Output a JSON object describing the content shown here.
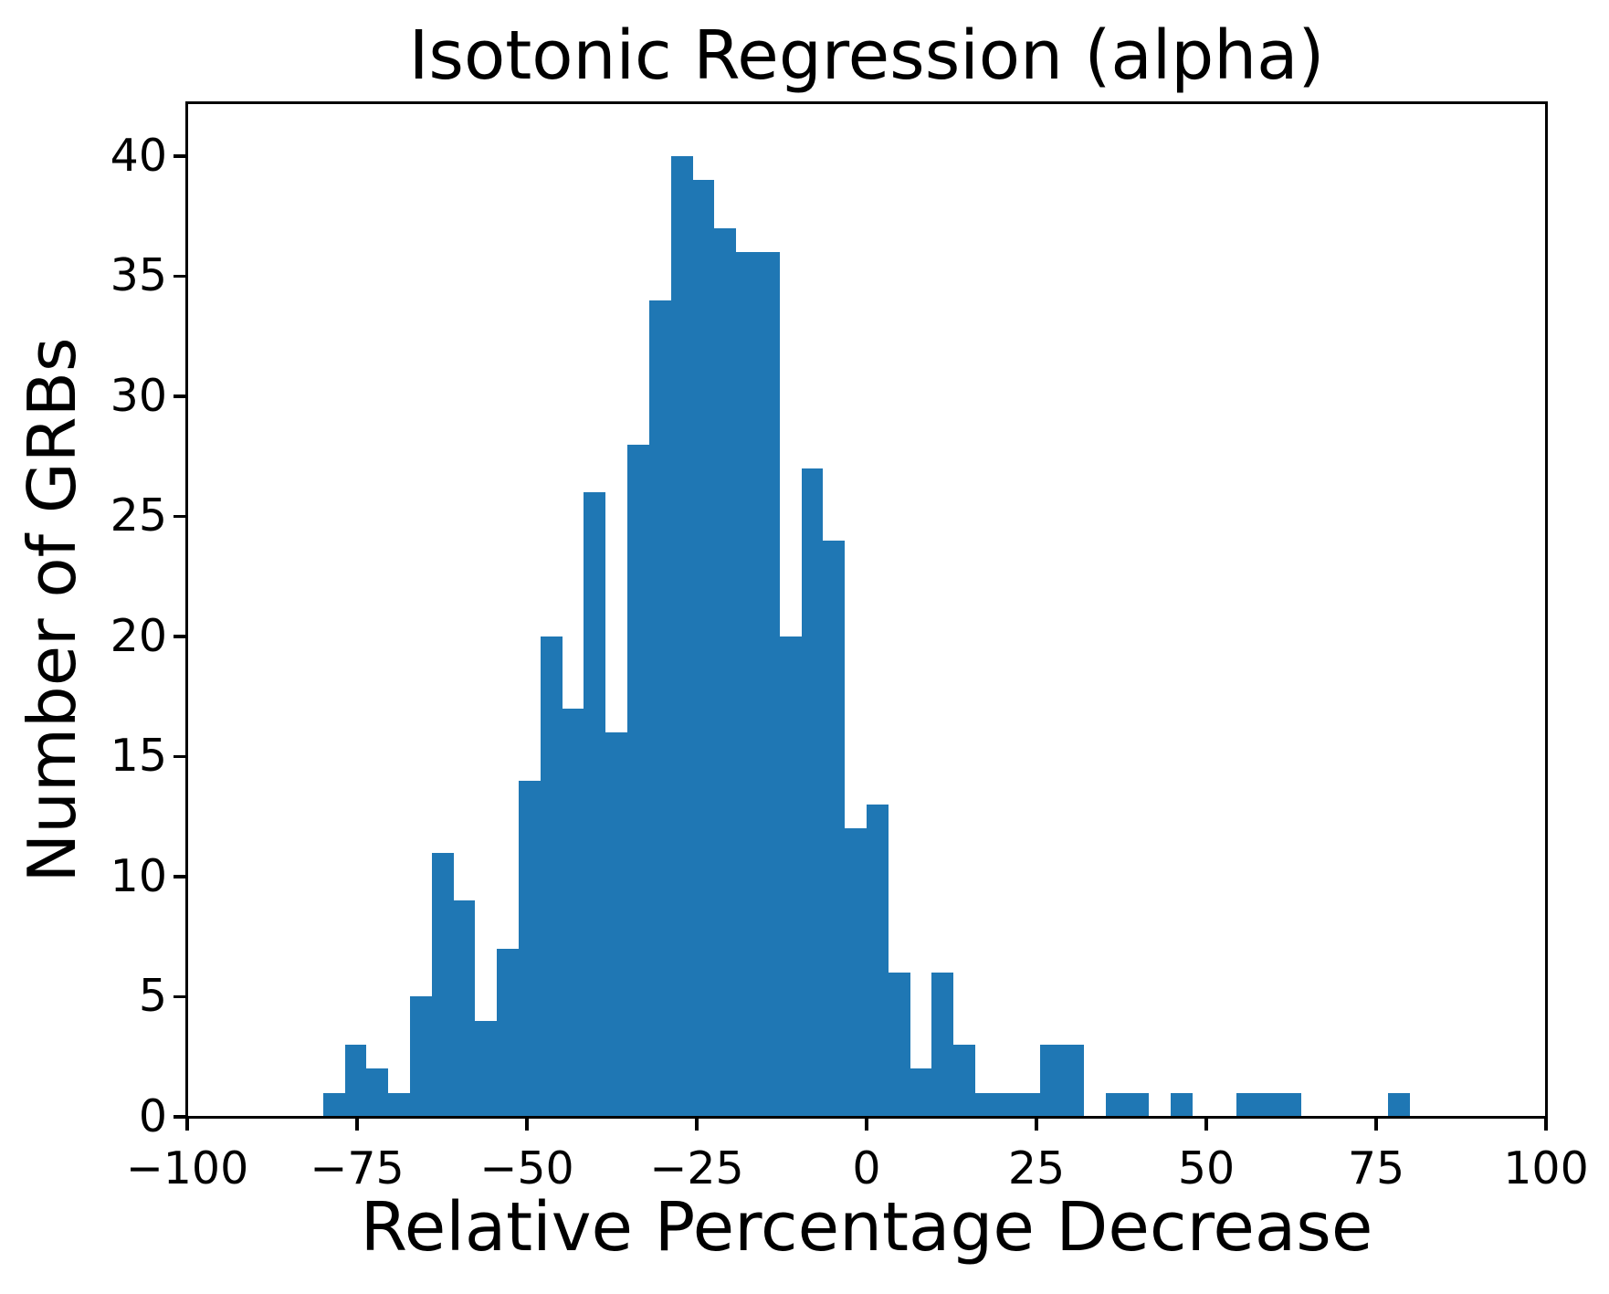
{
  "chart_data": {
    "type": "bar",
    "subtype": "histogram",
    "title": "Isotonic Regression (alpha)",
    "xlabel": "Relative Percentage Decrease",
    "ylabel": "Number of GRBs",
    "bin_start": -80,
    "bin_width": 3.2,
    "counts": [
      1,
      3,
      2,
      1,
      5,
      11,
      9,
      4,
      7,
      14,
      20,
      17,
      26,
      16,
      28,
      34,
      40,
      39,
      37,
      36,
      36,
      20,
      27,
      24,
      12,
      13,
      6,
      2,
      6,
      3,
      1,
      1,
      1,
      3,
      3,
      0,
      1,
      1,
      0,
      1,
      0,
      0,
      1,
      1,
      1,
      0,
      0,
      0,
      0,
      1
    ],
    "total_grbs": 515,
    "xlim": [
      -100,
      100
    ],
    "ylim": [
      0,
      42.2
    ],
    "x_ticks": [
      -100,
      -75,
      -50,
      -25,
      0,
      25,
      50,
      75,
      100
    ],
    "x_tick_labels": [
      "−100",
      "−75",
      "−50",
      "−25",
      "0",
      "25",
      "50",
      "75",
      "100"
    ],
    "y_ticks": [
      0,
      5,
      10,
      15,
      20,
      25,
      30,
      35,
      40
    ],
    "y_tick_labels": [
      "0",
      "5",
      "10",
      "15",
      "20",
      "25",
      "30",
      "35",
      "40"
    ],
    "bar_color": "#1f77b4",
    "axis_color": "#000000",
    "background_color": "#ffffff",
    "grid": false,
    "legend_position": "none"
  }
}
